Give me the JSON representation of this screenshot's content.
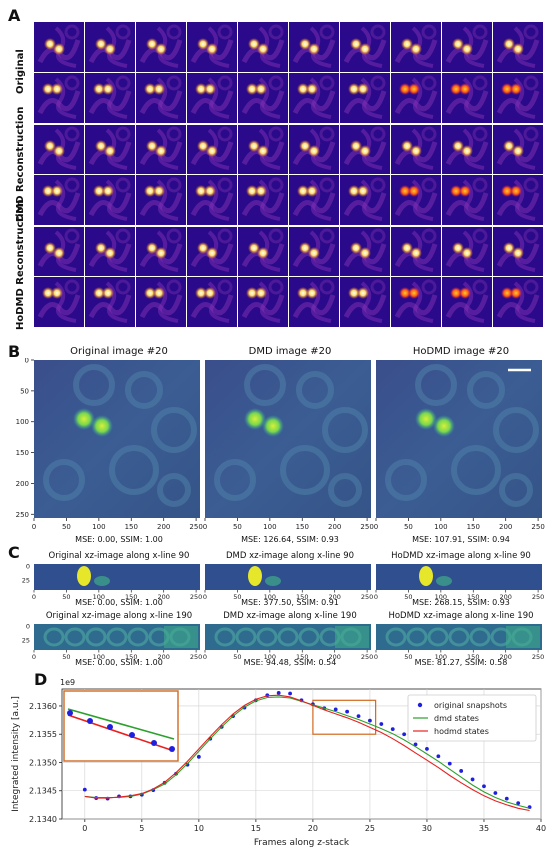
{
  "panels": {
    "A": "A",
    "B": "B",
    "C": "C",
    "D": "D"
  },
  "grid": {
    "row_labels": [
      "Original",
      "DMD Reconstruction",
      "HoDMD Reconstruction"
    ]
  },
  "panel_b": {
    "titles": [
      "Original image #20",
      "DMD image #20",
      "HoDMD image #20"
    ],
    "captions": [
      "MSE: 0.00, SSIM: 1.00",
      "MSE: 126.64, SSIM: 0.93",
      "MSE: 107.91, SSIM: 0.94"
    ],
    "x_ticks": [
      "0",
      "50",
      "100",
      "150",
      "200",
      "250"
    ],
    "y_ticks": [
      "0",
      "50",
      "100",
      "150",
      "200",
      "250"
    ]
  },
  "panel_c": {
    "row1_titles": [
      "Original xz-image along x-line 90",
      "DMD xz-image along x-line 90",
      "HoDMD xz-image along x-line 90"
    ],
    "row1_captions": [
      "MSE: 0.00, SSIM: 1.00",
      "MSE: 377.50, SSIM: 0.91",
      "MSE: 268.15, SSIM: 0.93"
    ],
    "row2_titles": [
      "Original xz-image along x-line 190",
      "DMD xz-image along x-line 190",
      "HoDMD xz-image along x-line 190"
    ],
    "row2_captions": [
      "MSE: 0.00, SSIM: 1.00",
      "MSE: 94.48, SSIM: 0.54",
      "MSE: 81.27, SSIM: 0.58"
    ],
    "x_ticks": [
      "0",
      "50",
      "100",
      "150",
      "200",
      "250"
    ],
    "y_ticks": [
      "0",
      "25"
    ]
  },
  "colors": {
    "snapshots": "#1f1fe0",
    "dmd": "#2ca02c",
    "hodmd": "#e8211f",
    "zoom_box": "#d2691e",
    "grid_bg": "#2a0a8a"
  },
  "chart_data": {
    "type": "line",
    "title": "",
    "xlabel": "Frames along z-stack",
    "ylabel": "Integrated intensity [a.u.]",
    "y_offset_label": "1e9",
    "xlim": [
      -2,
      40
    ],
    "ylim": [
      2.134,
      2.1363
    ],
    "x_ticks": [
      0,
      5,
      10,
      15,
      20,
      25,
      30,
      35,
      40
    ],
    "y_ticks": [
      2.134,
      2.1345,
      2.135,
      2.1355,
      2.136
    ],
    "y_tick_labels": [
      "2.1340",
      "2.1345",
      "2.1350",
      "2.1355",
      "2.1360"
    ],
    "legend_position": "top-right",
    "grid": true,
    "series": [
      {
        "name": "original snapshots",
        "style": "points",
        "x": [
          0,
          1,
          2,
          3,
          4,
          5,
          6,
          7,
          8,
          9,
          10,
          11,
          12,
          13,
          14,
          15,
          16,
          17,
          18,
          19,
          20,
          21,
          22,
          23,
          24,
          25,
          26,
          27,
          28,
          29,
          30,
          31,
          32,
          33,
          34,
          35,
          36,
          37,
          38,
          39
        ],
        "y": [
          2.13452,
          2.13437,
          2.13436,
          2.1344,
          2.1344,
          2.13443,
          2.13451,
          2.13464,
          2.1348,
          2.13496,
          2.1351,
          2.13542,
          2.13563,
          2.13582,
          2.13597,
          2.1361,
          2.13619,
          2.13623,
          2.13622,
          2.1361,
          2.13603,
          2.13596,
          2.13594,
          2.1359,
          2.13582,
          2.13574,
          2.13568,
          2.13559,
          2.1355,
          2.13532,
          2.13524,
          2.13511,
          2.13498,
          2.13485,
          2.1347,
          2.13458,
          2.13446,
          2.13436,
          2.13428,
          2.13421
        ]
      },
      {
        "name": "dmd states",
        "style": "line",
        "x": [
          0,
          1,
          2,
          3,
          4,
          5,
          6,
          7,
          8,
          9,
          10,
          11,
          12,
          13,
          14,
          15,
          16,
          17,
          18,
          19,
          20,
          21,
          22,
          23,
          24,
          25,
          26,
          27,
          28,
          29,
          30,
          31,
          32,
          33,
          34,
          35,
          36,
          37,
          38,
          39
        ],
        "y": [
          2.1344,
          2.13438,
          2.13438,
          2.13438,
          2.1344,
          2.13444,
          2.13452,
          2.13462,
          2.13478,
          2.13498,
          2.1352,
          2.13542,
          2.13563,
          2.13582,
          2.13598,
          2.13609,
          2.13615,
          2.13616,
          2.13614,
          2.13608,
          2.13602,
          2.13596,
          2.1359,
          2.13583,
          2.13576,
          2.13568,
          2.1356,
          2.13551,
          2.1354,
          2.13528,
          2.13515,
          2.13502,
          2.13488,
          2.13474,
          2.1346,
          2.13448,
          2.13438,
          2.1343,
          2.13424,
          2.13419
        ]
      },
      {
        "name": "hodmd states",
        "style": "line",
        "x": [
          0,
          1,
          2,
          3,
          4,
          5,
          6,
          7,
          8,
          9,
          10,
          11,
          12,
          13,
          14,
          15,
          16,
          17,
          18,
          19,
          20,
          21,
          22,
          23,
          24,
          25,
          26,
          27,
          28,
          29,
          30,
          31,
          32,
          33,
          34,
          35,
          36,
          37,
          38,
          39
        ],
        "y": [
          2.1344,
          2.13437,
          2.13437,
          2.13439,
          2.13441,
          2.13445,
          2.13453,
          2.13465,
          2.13482,
          2.13502,
          2.13524,
          2.13546,
          2.13567,
          2.13586,
          2.13601,
          2.13612,
          2.13618,
          2.13619,
          2.13616,
          2.13609,
          2.13601,
          2.13593,
          2.13586,
          2.13579,
          2.13571,
          2.13562,
          2.13553,
          2.13542,
          2.1353,
          2.13517,
          2.13504,
          2.13491,
          2.13477,
          2.13464,
          2.13452,
          2.13441,
          2.13432,
          2.13425,
          2.13419,
          2.13415
        ]
      }
    ]
  }
}
